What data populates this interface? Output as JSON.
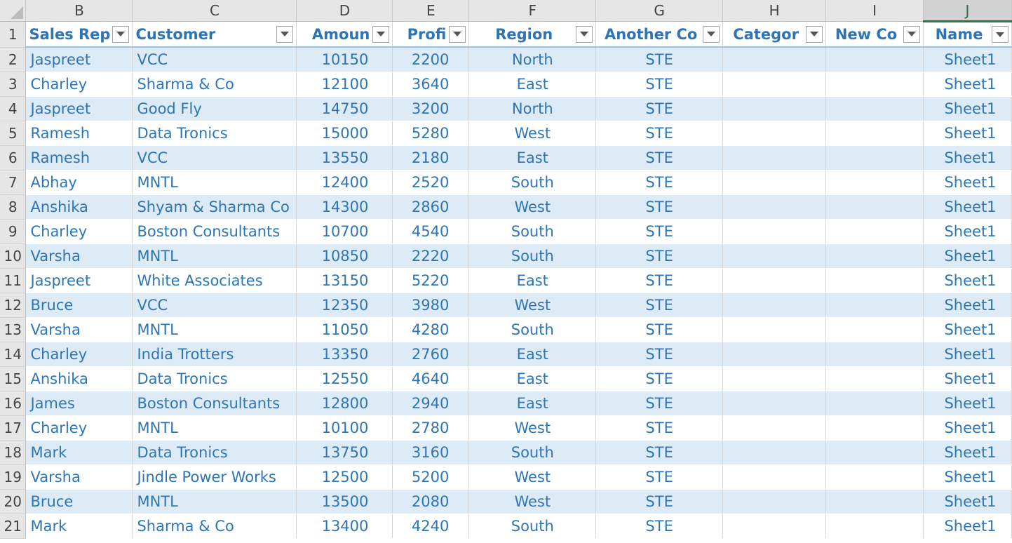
{
  "columns": [
    "B",
    "C",
    "D",
    "E",
    "F",
    "G",
    "H",
    "I",
    "J"
  ],
  "selected_column": "J",
  "headers": {
    "sales_rep": "Sales Rep",
    "customer": "Customer",
    "amount": "Amoun",
    "profit": "Profi",
    "region": "Region",
    "another": "Another Co",
    "category": "Categor",
    "newcol": "New Co",
    "name": "Name"
  },
  "rows": [
    {
      "num": "2",
      "rep": "Jaspreet",
      "cust": "VCC",
      "amt": "10150",
      "prof": "2200",
      "reg": "North",
      "oth": "STE",
      "cat": "",
      "new": "",
      "name": "Sheet1"
    },
    {
      "num": "3",
      "rep": "Charley",
      "cust": "Sharma & Co",
      "amt": "12100",
      "prof": "3640",
      "reg": "East",
      "oth": "STE",
      "cat": "",
      "new": "",
      "name": "Sheet1"
    },
    {
      "num": "4",
      "rep": "Jaspreet",
      "cust": "Good Fly",
      "amt": "14750",
      "prof": "3200",
      "reg": "North",
      "oth": "STE",
      "cat": "",
      "new": "",
      "name": "Sheet1"
    },
    {
      "num": "5",
      "rep": "Ramesh",
      "cust": "Data Tronics",
      "amt": "15000",
      "prof": "5280",
      "reg": "West",
      "oth": "STE",
      "cat": "",
      "new": "",
      "name": "Sheet1"
    },
    {
      "num": "6",
      "rep": "Ramesh",
      "cust": "VCC",
      "amt": "13550",
      "prof": "2180",
      "reg": "East",
      "oth": "STE",
      "cat": "",
      "new": "",
      "name": "Sheet1"
    },
    {
      "num": "7",
      "rep": "Abhay",
      "cust": "MNTL",
      "amt": "12400",
      "prof": "2520",
      "reg": "South",
      "oth": "STE",
      "cat": "",
      "new": "",
      "name": "Sheet1"
    },
    {
      "num": "8",
      "rep": "Anshika",
      "cust": "Shyam & Sharma Co",
      "amt": "14300",
      "prof": "2860",
      "reg": "West",
      "oth": "STE",
      "cat": "",
      "new": "",
      "name": "Sheet1"
    },
    {
      "num": "9",
      "rep": "Charley",
      "cust": "Boston Consultants",
      "amt": "10700",
      "prof": "4540",
      "reg": "South",
      "oth": "STE",
      "cat": "",
      "new": "",
      "name": "Sheet1"
    },
    {
      "num": "10",
      "rep": "Varsha",
      "cust": "MNTL",
      "amt": "10850",
      "prof": "2220",
      "reg": "South",
      "oth": "STE",
      "cat": "",
      "new": "",
      "name": "Sheet1"
    },
    {
      "num": "11",
      "rep": "Jaspreet",
      "cust": "White Associates",
      "amt": "13150",
      "prof": "5220",
      "reg": "East",
      "oth": "STE",
      "cat": "",
      "new": "",
      "name": "Sheet1"
    },
    {
      "num": "12",
      "rep": "Bruce",
      "cust": "VCC",
      "amt": "12350",
      "prof": "3980",
      "reg": "West",
      "oth": "STE",
      "cat": "",
      "new": "",
      "name": "Sheet1"
    },
    {
      "num": "13",
      "rep": "Varsha",
      "cust": "MNTL",
      "amt": "11050",
      "prof": "4280",
      "reg": "South",
      "oth": "STE",
      "cat": "",
      "new": "",
      "name": "Sheet1"
    },
    {
      "num": "14",
      "rep": "Charley",
      "cust": "India Trotters",
      "amt": "13350",
      "prof": "2760",
      "reg": "East",
      "oth": "STE",
      "cat": "",
      "new": "",
      "name": "Sheet1"
    },
    {
      "num": "15",
      "rep": "Anshika",
      "cust": "Data Tronics",
      "amt": "12550",
      "prof": "4640",
      "reg": "East",
      "oth": "STE",
      "cat": "",
      "new": "",
      "name": "Sheet1"
    },
    {
      "num": "16",
      "rep": "James",
      "cust": "Boston Consultants",
      "amt": "12800",
      "prof": "2940",
      "reg": "East",
      "oth": "STE",
      "cat": "",
      "new": "",
      "name": "Sheet1"
    },
    {
      "num": "17",
      "rep": "Charley",
      "cust": "MNTL",
      "amt": "10100",
      "prof": "2780",
      "reg": "West",
      "oth": "STE",
      "cat": "",
      "new": "",
      "name": "Sheet1"
    },
    {
      "num": "18",
      "rep": "Mark",
      "cust": "Data Tronics",
      "amt": "13750",
      "prof": "3160",
      "reg": "South",
      "oth": "STE",
      "cat": "",
      "new": "",
      "name": "Sheet1"
    },
    {
      "num": "19",
      "rep": "Varsha",
      "cust": "Jindle Power Works",
      "amt": "12500",
      "prof": "5200",
      "reg": "West",
      "oth": "STE",
      "cat": "",
      "new": "",
      "name": "Sheet1"
    },
    {
      "num": "20",
      "rep": "Bruce",
      "cust": "MNTL",
      "amt": "13500",
      "prof": "2080",
      "reg": "West",
      "oth": "STE",
      "cat": "",
      "new": "",
      "name": "Sheet1"
    },
    {
      "num": "21",
      "rep": "Mark",
      "cust": "Sharma & Co",
      "amt": "13400",
      "prof": "4240",
      "reg": "South",
      "oth": "STE",
      "cat": "",
      "new": "",
      "name": "Sheet1"
    }
  ],
  "header_row_num": "1",
  "colors": {
    "accent": "#217346",
    "text": "#2e75b6",
    "band": "#ddebf7"
  }
}
